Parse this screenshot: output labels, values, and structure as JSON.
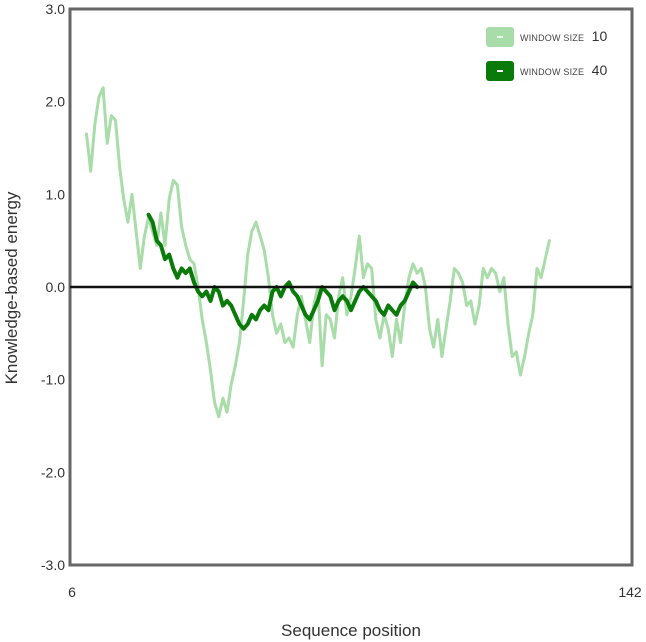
{
  "chart_data": {
    "type": "line",
    "xlabel": "Sequence position",
    "ylabel": "Knowledge-based energy",
    "xlim": [
      6,
      142
    ],
    "ylim": [
      -3.0,
      3.0
    ],
    "x_ticks": [
      "6",
      "142"
    ],
    "y_ticks": [
      "3.0",
      "2.0",
      "1.0",
      "0.0",
      "-1.0",
      "-2.0",
      "-3.0"
    ],
    "reference_line_y": 0.0,
    "legend": {
      "placement": "top-right",
      "entries": [
        {
          "prefix": "WINDOW SIZE",
          "value": "10",
          "color": "#a8dca8"
        },
        {
          "prefix": "WINDOW SIZE",
          "value": "40",
          "color": "#0a7a0a"
        }
      ]
    },
    "series": [
      {
        "color": "#a8dca8",
        "points": [
          [
            10,
            1.65
          ],
          [
            11,
            1.25
          ],
          [
            12,
            1.75
          ],
          [
            13,
            2.05
          ],
          [
            14,
            2.15
          ],
          [
            15,
            1.55
          ],
          [
            16,
            1.85
          ],
          [
            17,
            1.8
          ],
          [
            18,
            1.3
          ],
          [
            19,
            0.95
          ],
          [
            20,
            0.7
          ],
          [
            21,
            1.0
          ],
          [
            22,
            0.6
          ],
          [
            23,
            0.2
          ],
          [
            24,
            0.55
          ],
          [
            25,
            0.75
          ],
          [
            26,
            0.6
          ],
          [
            27,
            0.45
          ],
          [
            28,
            0.8
          ],
          [
            29,
            0.45
          ],
          [
            30,
            0.95
          ],
          [
            31,
            1.15
          ],
          [
            32,
            1.1
          ],
          [
            33,
            0.65
          ],
          [
            34,
            0.45
          ],
          [
            35,
            0.3
          ],
          [
            36,
            0.25
          ],
          [
            37,
            0.0
          ],
          [
            38,
            -0.35
          ],
          [
            39,
            -0.6
          ],
          [
            40,
            -0.9
          ],
          [
            41,
            -1.25
          ],
          [
            42,
            -1.4
          ],
          [
            43,
            -1.2
          ],
          [
            44,
            -1.35
          ],
          [
            45,
            -1.05
          ],
          [
            46,
            -0.85
          ],
          [
            47,
            -0.6
          ],
          [
            48,
            -0.15
          ],
          [
            49,
            0.35
          ],
          [
            50,
            0.6
          ],
          [
            51,
            0.7
          ],
          [
            52,
            0.55
          ],
          [
            53,
            0.4
          ],
          [
            54,
            0.1
          ],
          [
            55,
            -0.3
          ],
          [
            56,
            -0.5
          ],
          [
            57,
            -0.4
          ],
          [
            58,
            -0.6
          ],
          [
            59,
            -0.55
          ],
          [
            60,
            -0.65
          ],
          [
            61,
            -0.3
          ],
          [
            62,
            -0.1
          ],
          [
            63,
            -0.35
          ],
          [
            64,
            -0.6
          ],
          [
            65,
            -0.2
          ],
          [
            66,
            0.0
          ],
          [
            67,
            -0.85
          ],
          [
            68,
            -0.3
          ],
          [
            69,
            -0.35
          ],
          [
            70,
            -0.55
          ],
          [
            71,
            -0.1
          ],
          [
            72,
            0.1
          ],
          [
            73,
            -0.3
          ],
          [
            74,
            -0.1
          ],
          [
            75,
            0.2
          ],
          [
            76,
            0.55
          ],
          [
            77,
            0.1
          ],
          [
            78,
            0.25
          ],
          [
            79,
            0.2
          ],
          [
            80,
            -0.35
          ],
          [
            81,
            -0.55
          ],
          [
            82,
            -0.3
          ],
          [
            83,
            -0.45
          ],
          [
            84,
            -0.75
          ],
          [
            85,
            -0.35
          ],
          [
            86,
            -0.6
          ],
          [
            87,
            -0.2
          ],
          [
            88,
            0.1
          ],
          [
            89,
            0.25
          ],
          [
            90,
            0.15
          ],
          [
            91,
            0.2
          ],
          [
            92,
            0.0
          ],
          [
            93,
            -0.45
          ],
          [
            94,
            -0.65
          ],
          [
            95,
            -0.35
          ],
          [
            96,
            -0.75
          ],
          [
            97,
            -0.45
          ],
          [
            98,
            -0.15
          ],
          [
            99,
            0.2
          ],
          [
            100,
            0.15
          ],
          [
            101,
            0.05
          ],
          [
            102,
            -0.2
          ],
          [
            103,
            -0.15
          ],
          [
            104,
            -0.4
          ],
          [
            105,
            -0.2
          ],
          [
            106,
            0.2
          ],
          [
            107,
            0.1
          ],
          [
            108,
            0.2
          ],
          [
            109,
            0.15
          ],
          [
            110,
            -0.05
          ],
          [
            111,
            0.1
          ],
          [
            112,
            -0.4
          ],
          [
            113,
            -0.75
          ],
          [
            114,
            -0.7
          ],
          [
            115,
            -0.95
          ],
          [
            116,
            -0.75
          ],
          [
            117,
            -0.5
          ],
          [
            118,
            -0.3
          ],
          [
            119,
            0.2
          ],
          [
            120,
            0.1
          ],
          [
            121,
            0.3
          ],
          [
            122,
            0.5
          ]
        ]
      },
      {
        "color": "#0a7a0a",
        "points": [
          [
            25,
            0.78
          ],
          [
            26,
            0.7
          ],
          [
            27,
            0.5
          ],
          [
            28,
            0.45
          ],
          [
            29,
            0.3
          ],
          [
            30,
            0.35
          ],
          [
            31,
            0.2
          ],
          [
            32,
            0.1
          ],
          [
            33,
            0.2
          ],
          [
            34,
            0.15
          ],
          [
            35,
            0.2
          ],
          [
            36,
            0.05
          ],
          [
            37,
            -0.05
          ],
          [
            38,
            -0.1
          ],
          [
            39,
            -0.05
          ],
          [
            40,
            -0.15
          ],
          [
            41,
            0.0
          ],
          [
            42,
            -0.05
          ],
          [
            43,
            -0.2
          ],
          [
            44,
            -0.15
          ],
          [
            45,
            -0.2
          ],
          [
            46,
            -0.3
          ],
          [
            47,
            -0.4
          ],
          [
            48,
            -0.45
          ],
          [
            49,
            -0.4
          ],
          [
            50,
            -0.3
          ],
          [
            51,
            -0.35
          ],
          [
            52,
            -0.25
          ],
          [
            53,
            -0.2
          ],
          [
            54,
            -0.25
          ],
          [
            55,
            -0.05
          ],
          [
            56,
            0.0
          ],
          [
            57,
            -0.1
          ],
          [
            58,
            0.0
          ],
          [
            59,
            0.05
          ],
          [
            60,
            -0.05
          ],
          [
            61,
            -0.1
          ],
          [
            62,
            -0.2
          ],
          [
            63,
            -0.3
          ],
          [
            64,
            -0.35
          ],
          [
            65,
            -0.25
          ],
          [
            66,
            -0.15
          ],
          [
            67,
            0.0
          ],
          [
            68,
            -0.05
          ],
          [
            69,
            -0.1
          ],
          [
            70,
            -0.25
          ],
          [
            71,
            -0.15
          ],
          [
            72,
            -0.1
          ],
          [
            73,
            -0.15
          ],
          [
            74,
            -0.25
          ],
          [
            75,
            -0.15
          ],
          [
            76,
            -0.05
          ],
          [
            77,
            0.0
          ],
          [
            78,
            -0.05
          ],
          [
            79,
            -0.1
          ],
          [
            80,
            -0.15
          ],
          [
            81,
            -0.25
          ],
          [
            82,
            -0.3
          ],
          [
            83,
            -0.2
          ],
          [
            84,
            -0.25
          ],
          [
            85,
            -0.3
          ],
          [
            86,
            -0.2
          ],
          [
            87,
            -0.15
          ],
          [
            88,
            -0.05
          ],
          [
            89,
            0.05
          ],
          [
            90,
            0.0
          ]
        ]
      }
    ]
  }
}
